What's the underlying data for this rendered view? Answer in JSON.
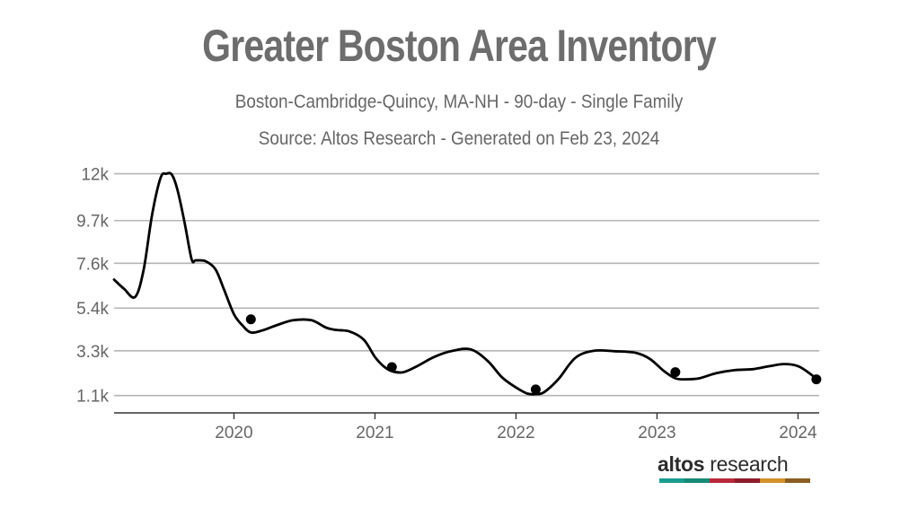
{
  "brand": {
    "name_bold": "altos",
    "name_rest": " research",
    "bar_colors": [
      "#1a9d8f",
      "#168a75",
      "#b7293a",
      "#8f1b2c",
      "#d4902a",
      "#8a5e22"
    ]
  },
  "chart_data": {
    "type": "line",
    "title": "Greater Boston Area Inventory",
    "subtitle": "Boston-Cambridge-Quincy, MA-NH - 90-day - Single Family",
    "source": "Source: Altos Research - Generated on Feb 23, 2024",
    "xlabel": "",
    "ylabel": "",
    "xlim": [
      2019.15,
      2024.15
    ],
    "ylim": [
      250,
      12600
    ],
    "yticks": [
      1100,
      3300,
      5400,
      7600,
      9700,
      12000
    ],
    "ytick_labels": [
      "1.1k",
      "3.3k",
      "5.4k",
      "7.6k",
      "9.7k",
      "12k"
    ],
    "xticks": [
      2020,
      2021,
      2022,
      2023,
      2024
    ],
    "xtick_labels": [
      "2020",
      "2021",
      "2022",
      "2023",
      "2024"
    ],
    "grid": true,
    "line_color": "#000000",
    "series": [
      {
        "name": "Inventory",
        "x": [
          2019.15,
          2019.22,
          2019.3,
          2019.36,
          2019.42,
          2019.48,
          2019.52,
          2019.56,
          2019.6,
          2019.65,
          2019.7,
          2019.73,
          2019.8,
          2019.87,
          2019.93,
          2020.0,
          2020.06,
          2020.12,
          2020.2,
          2020.3,
          2020.42,
          2020.55,
          2020.65,
          2020.72,
          2020.82,
          2020.92,
          2021.0,
          2021.06,
          2021.12,
          2021.2,
          2021.3,
          2021.42,
          2021.55,
          2021.68,
          2021.8,
          2021.9,
          2022.0,
          2022.08,
          2022.14,
          2022.2,
          2022.3,
          2022.42,
          2022.55,
          2022.7,
          2022.85,
          2022.95,
          2023.05,
          2023.13,
          2023.2,
          2023.3,
          2023.42,
          2023.55,
          2023.68,
          2023.8,
          2023.9,
          2024.0,
          2024.1,
          2024.13
        ],
        "values": [
          6800,
          6350,
          5950,
          7300,
          10000,
          11800,
          12000,
          11950,
          11200,
          9600,
          7800,
          7750,
          7700,
          7300,
          6300,
          5100,
          4550,
          4200,
          4300,
          4550,
          4800,
          4800,
          4450,
          4330,
          4250,
          3850,
          3000,
          2550,
          2300,
          2250,
          2550,
          3000,
          3300,
          3370,
          2800,
          2000,
          1500,
          1200,
          1170,
          1270,
          1900,
          2950,
          3300,
          3280,
          3200,
          2900,
          2300,
          1950,
          1900,
          1950,
          2200,
          2350,
          2400,
          2550,
          2650,
          2550,
          2100,
          1900
        ]
      }
    ],
    "markers": [
      {
        "x": 2020.12,
        "y": 4850
      },
      {
        "x": 2021.12,
        "y": 2500
      },
      {
        "x": 2022.14,
        "y": 1400
      },
      {
        "x": 2023.13,
        "y": 2250
      },
      {
        "x": 2024.13,
        "y": 1900
      }
    ]
  }
}
